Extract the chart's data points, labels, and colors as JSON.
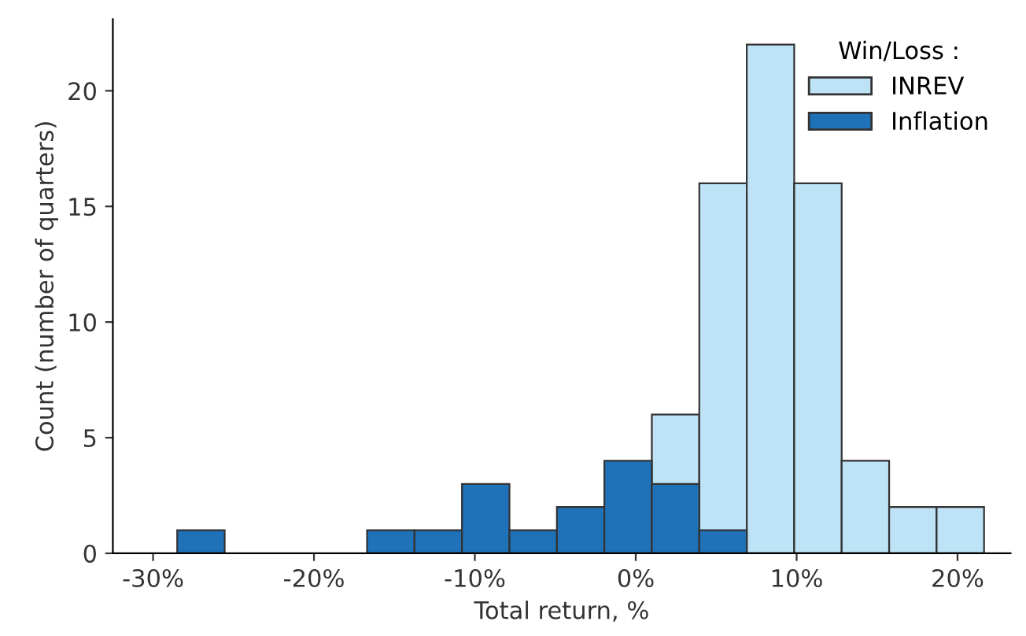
{
  "chart_data": {
    "type": "histogram",
    "xlabel": "Total return, %",
    "ylabel": "Count (number of quarters)",
    "legend_title": "Win/Loss :",
    "bins": [
      -28.5,
      -25.55,
      -22.6,
      -19.65,
      -16.7,
      -13.75,
      -10.8,
      -7.85,
      -4.9,
      -1.95,
      1.0,
      3.95,
      6.9,
      9.85,
      12.8,
      15.75,
      18.7,
      21.65
    ],
    "series": [
      {
        "name": "INREV",
        "color": "#bee3f6",
        "values": [
          null,
          0,
          0,
          0,
          null,
          null,
          null,
          null,
          null,
          null,
          6,
          16,
          22,
          16,
          4,
          2,
          2
        ]
      },
      {
        "name": "Inflation",
        "color": "#1f72b8",
        "values": [
          1,
          0,
          0,
          0,
          1,
          1,
          3,
          1,
          2,
          4,
          3,
          1,
          0,
          0,
          0,
          0,
          0
        ]
      }
    ],
    "xlim": [
      -32.5,
      23.3
    ],
    "ylim": [
      0,
      23.1
    ],
    "xticks": [
      {
        "value": -30,
        "label": "-30%"
      },
      {
        "value": -20,
        "label": "-20%"
      },
      {
        "value": -10,
        "label": "-10%"
      },
      {
        "value": 0,
        "label": "0%"
      },
      {
        "value": 10,
        "label": "10%"
      },
      {
        "value": 20,
        "label": "20%"
      }
    ],
    "yticks": [
      0,
      5,
      10,
      15,
      20
    ],
    "grid": false,
    "legend": "top right"
  }
}
